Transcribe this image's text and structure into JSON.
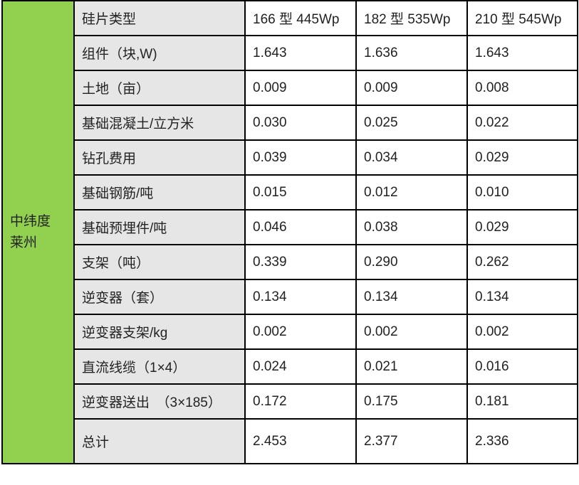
{
  "region": [
    "中纬度",
    "莱州"
  ],
  "header": {
    "label": "硅片类型",
    "columns": [
      "166 型 445Wp",
      "182 型 535Wp",
      "210 型 545Wp"
    ]
  },
  "rows": [
    {
      "label": "组件（块,W)",
      "values": [
        "1.643",
        "1.636",
        "1.643"
      ]
    },
    {
      "label": "土地（亩）",
      "values": [
        "0.009",
        "0.009",
        "0.008"
      ]
    },
    {
      "label": "基础混凝土/立方米",
      "values": [
        "0.030",
        "0.025",
        "0.022"
      ]
    },
    {
      "label": "钻孔费用",
      "values": [
        "0.039",
        "0.034",
        "0.029"
      ]
    },
    {
      "label": "基础钢筋/吨",
      "values": [
        "0.015",
        "0.012",
        "0.010"
      ]
    },
    {
      "label": "基础预埋件/吨",
      "values": [
        "0.046",
        "0.038",
        "0.029"
      ]
    },
    {
      "label": "支架（吨）",
      "values": [
        "0.339",
        "0.290",
        "0.262"
      ]
    },
    {
      "label": "逆变器（套）",
      "values": [
        "0.134",
        "0.134",
        "0.134"
      ]
    },
    {
      "label": "逆变器支架/kg",
      "values": [
        "0.002",
        "0.002",
        "0.002"
      ]
    },
    {
      "label": "直流线缆（1×4）",
      "values": [
        "0.024",
        "0.021",
        "0.016"
      ]
    },
    {
      "label": "逆变器送出　（3×185）",
      "values": [
        "0.172",
        "0.175",
        "0.181"
      ]
    },
    {
      "label": "总计",
      "values": [
        "2.453",
        "2.377",
        "2.336"
      ]
    }
  ],
  "colors": {
    "region_bg": "#92d050",
    "label_bg": "#e7e6e6"
  }
}
